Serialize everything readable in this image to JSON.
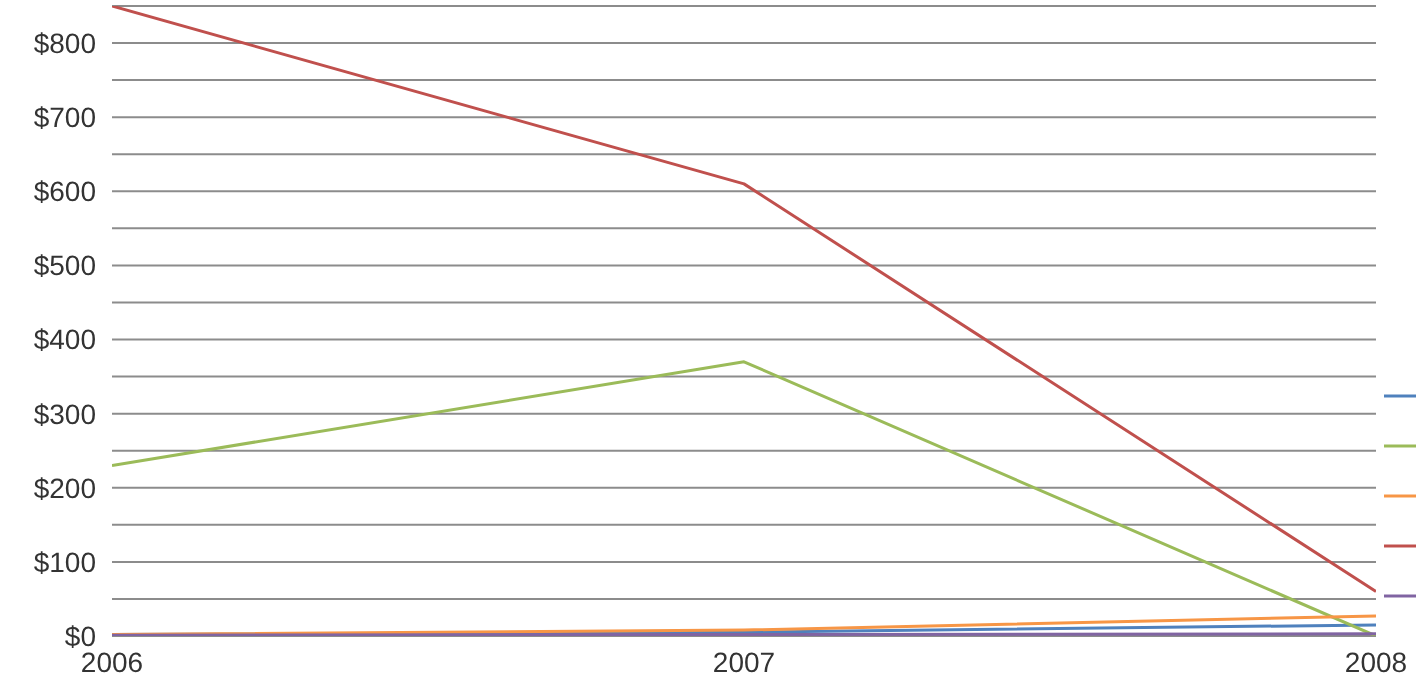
{
  "chart_data": {
    "type": "line",
    "x": [
      2006,
      2007,
      2008
    ],
    "xlim": [
      2006,
      2008
    ],
    "xticks": [
      2006,
      2007,
      2008
    ],
    "ylim": [
      0,
      850
    ],
    "yticks": [
      {
        "value": 0,
        "label": "$0"
      },
      {
        "value": 50,
        "label": null
      },
      {
        "value": 100,
        "label": "$100"
      },
      {
        "value": 150,
        "label": null
      },
      {
        "value": 200,
        "label": "$200"
      },
      {
        "value": 250,
        "label": null
      },
      {
        "value": 300,
        "label": "$300"
      },
      {
        "value": 350,
        "label": null
      },
      {
        "value": 400,
        "label": "$400"
      },
      {
        "value": 450,
        "label": null
      },
      {
        "value": 500,
        "label": "$500"
      },
      {
        "value": 550,
        "label": null
      },
      {
        "value": 600,
        "label": "$600"
      },
      {
        "value": 650,
        "label": null
      },
      {
        "value": 700,
        "label": "$700"
      },
      {
        "value": 750,
        "label": null
      },
      {
        "value": 800,
        "label": "$800"
      },
      {
        "value": 850,
        "label": null
      }
    ],
    "grid": "y",
    "marker": "none",
    "line_style": "solid",
    "series": [
      {
        "color": "#4f81bd",
        "values": [
          2,
          5,
          15
        ]
      },
      {
        "color": "#9bbb59",
        "values": [
          230,
          370,
          0
        ]
      },
      {
        "color": "#f79646",
        "values": [
          2,
          8,
          27
        ]
      },
      {
        "color": "#c0504d",
        "values": [
          850,
          610,
          60
        ]
      },
      {
        "color": "#8064a2",
        "values": [
          1,
          2,
          3
        ]
      }
    ]
  }
}
